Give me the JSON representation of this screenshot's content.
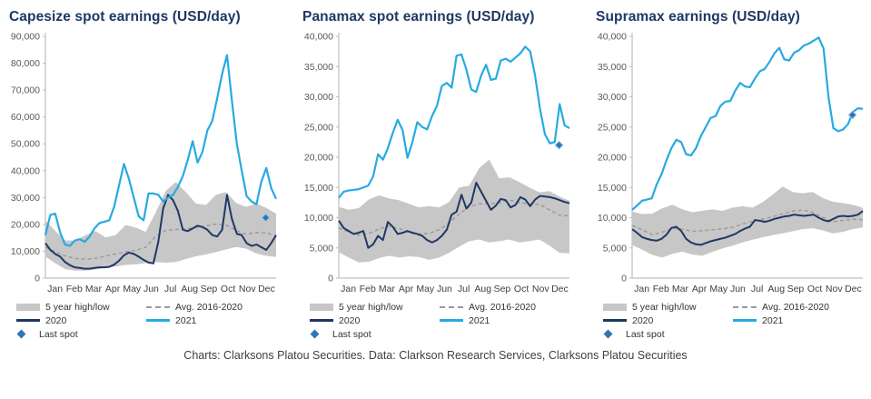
{
  "footer": {
    "caption": "Charts: Clarksons Platou Securities. Data: Clarkson Research Services, Clarksons Platou Securities"
  },
  "colors": {
    "title": "#1F3864",
    "band": "#C7C7C8",
    "avg": "#999999",
    "y2020": "#1F3864",
    "y2021": "#27AAE1",
    "last_spot": "#2E75B6",
    "axis": "#BFBFBF",
    "tick_text": "#595959"
  },
  "chart_data": [
    {
      "type": "line",
      "title": "Capesize spot earnings (USD/day)",
      "x_labels": [
        "Jan",
        "Feb",
        "Mar",
        "Apr",
        "May",
        "Jun",
        "Jul",
        "Aug",
        "Sep",
        "Oct",
        "Nov",
        "Dec"
      ],
      "ylim": [
        0,
        90000
      ],
      "y_tick_step": 10000,
      "grid": false,
      "legend_position": "bottom",
      "band": {
        "label": "5 year high/low",
        "low": [
          8000,
          5500,
          3300,
          2800,
          2800,
          3200,
          3900,
          4300,
          4900,
          5100,
          5600,
          6000,
          5700,
          6000,
          7100,
          8100,
          8800,
          9700,
          10700,
          11600,
          11000,
          9200,
          8300,
          7900
        ],
        "high": [
          21500,
          17500,
          14000,
          14000,
          16000,
          17500,
          15200,
          16000,
          19800,
          18800,
          17200,
          24500,
          32500,
          35800,
          32000,
          27800,
          27200,
          31000,
          32000,
          28000,
          26500,
          27800,
          26200,
          24000
        ]
      },
      "avg": {
        "label": "Avg. 2016-2020",
        "values": [
          11500,
          9800,
          8200,
          7300,
          7000,
          7400,
          8200,
          9000,
          9800,
          10300,
          11500,
          15500,
          17800,
          18100,
          18300,
          18900,
          19400,
          20100,
          19800,
          17800,
          16300,
          17000,
          16800,
          15700
        ]
      },
      "y2020": {
        "label": "2020",
        "values": [
          13000,
          10500,
          9000,
          8000,
          6000,
          4800,
          4000,
          3800,
          3500,
          3500,
          3800,
          4000,
          4000,
          4200,
          5000,
          6500,
          8500,
          9500,
          9000,
          8000,
          6800,
          5800,
          5500,
          13500,
          26000,
          31000,
          29000,
          25000,
          18000,
          17500,
          18500,
          19500,
          19000,
          18000,
          16000,
          15500,
          18000,
          31000,
          22000,
          16500,
          16000,
          13000,
          12000,
          12500,
          11500,
          10500,
          13000,
          16000
        ]
      },
      "y2021": {
        "label": "2021",
        "values": [
          16000,
          23500,
          24000,
          17000,
          12500,
          12000,
          14000,
          14500,
          13500,
          15500,
          18500,
          20500,
          21000,
          21500,
          26500,
          34500,
          42500,
          37000,
          30000,
          23000,
          21500,
          31500,
          31500,
          31000,
          28500,
          30000,
          31000,
          34000,
          38000,
          44000,
          51000,
          43000,
          47000,
          55000,
          58500,
          67000,
          76000,
          83000,
          66000,
          50000,
          40000,
          30500,
          28500,
          27500,
          36000,
          41000,
          33500,
          29500
        ]
      },
      "last_spot": {
        "label": "Last spot",
        "value": 22500
      }
    },
    {
      "type": "line",
      "title": "Panamax spot earnings (USD/day)",
      "x_labels": [
        "Jan",
        "Feb",
        "Mar",
        "Apr",
        "May",
        "Jun",
        "Jul",
        "Aug",
        "Sep",
        "Oct",
        "Nov",
        "Dec"
      ],
      "ylim": [
        0,
        40000
      ],
      "y_tick_step": 5000,
      "grid": false,
      "legend_position": "bottom",
      "band": {
        "label": "5 year high/low",
        "low": [
          4300,
          3400,
          2600,
          2700,
          3300,
          3700,
          3400,
          3600,
          3500,
          3000,
          3400,
          4200,
          5200,
          6100,
          6400,
          5900,
          6100,
          6400,
          5900,
          6100,
          6400,
          5400,
          4200,
          4100
        ],
        "high": [
          11800,
          11300,
          11600,
          13000,
          13700,
          13200,
          12900,
          12300,
          11700,
          11900,
          11700,
          12600,
          15000,
          15300,
          18200,
          19600,
          16500,
          16700,
          15900,
          15000,
          14200,
          14400,
          13500,
          12800
        ]
      },
      "avg": {
        "label": "Avg. 2016-2020",
        "values": [
          8300,
          7600,
          7100,
          7400,
          8100,
          8600,
          8200,
          7700,
          7300,
          7400,
          8000,
          9100,
          10600,
          11800,
          12300,
          12300,
          12500,
          12900,
          12500,
          12300,
          12200,
          11300,
          10400,
          10300
        ]
      },
      "y2020": {
        "label": "2020",
        "values": [
          9500,
          8300,
          7800,
          7300,
          7500,
          7800,
          5000,
          5600,
          7000,
          6300,
          9300,
          8500,
          7300,
          7500,
          7800,
          7500,
          7300,
          7000,
          6300,
          5900,
          6300,
          7000,
          8000,
          10500,
          11000,
          13800,
          11500,
          12500,
          15800,
          14300,
          12800,
          11300,
          12000,
          13100,
          12900,
          11700,
          12100,
          13400,
          13000,
          11900,
          13000,
          13600,
          13500,
          13400,
          13200,
          12900,
          12600,
          12400
        ]
      },
      "y2021": {
        "label": "2021",
        "values": [
          13300,
          14300,
          14500,
          14600,
          14700,
          15000,
          15300,
          16800,
          20500,
          19600,
          21500,
          24000,
          26200,
          24500,
          19900,
          22500,
          25800,
          25000,
          24600,
          26800,
          28500,
          31800,
          32300,
          31500,
          36800,
          37000,
          34500,
          31200,
          30800,
          33500,
          35300,
          32800,
          33000,
          36000,
          36300,
          35800,
          36500,
          37200,
          38300,
          37500,
          33500,
          28000,
          23800,
          22300,
          22500,
          28800,
          25300,
          24800
        ]
      },
      "last_spot": {
        "label": "Last spot",
        "value": 22000
      }
    },
    {
      "type": "line",
      "title": "Supramax earnings (USD/day)",
      "x_labels": [
        "Jan",
        "Feb",
        "Mar",
        "Apr",
        "May",
        "Jun",
        "Jul",
        "Aug",
        "Sep",
        "Oct",
        "Nov",
        "Dec"
      ],
      "ylim": [
        0,
        40000
      ],
      "y_tick_step": 5000,
      "grid": false,
      "legend_position": "bottom",
      "band": {
        "label": "5 year high/low",
        "low": [
          5500,
          4700,
          3850,
          3400,
          4000,
          4400,
          3900,
          3700,
          4350,
          4900,
          5350,
          5900,
          6350,
          6750,
          7100,
          7400,
          7750,
          8100,
          8250,
          7900,
          7400,
          7650,
          8100,
          8400
        ],
        "high": [
          11000,
          10600,
          10650,
          11550,
          12150,
          11400,
          10900,
          11150,
          11400,
          11100,
          11650,
          11900,
          11650,
          12550,
          13800,
          15150,
          14250,
          14050,
          14250,
          13250,
          12650,
          12400,
          12150,
          11650
        ]
      },
      "avg": {
        "label": "Avg. 2016-2020",
        "values": [
          8700,
          8000,
          7200,
          7600,
          8250,
          8100,
          7750,
          7850,
          8000,
          8150,
          8400,
          8950,
          9400,
          9750,
          10150,
          10650,
          11100,
          11250,
          10900,
          10050,
          9300,
          9550,
          9750,
          9650
        ]
      },
      "y2020": {
        "label": "2020",
        "values": [
          8100,
          7500,
          6800,
          6500,
          6300,
          6200,
          6500,
          7200,
          8300,
          8500,
          7800,
          6500,
          5900,
          5600,
          5500,
          5800,
          6100,
          6300,
          6500,
          6700,
          7000,
          7300,
          7800,
          8200,
          8500,
          9600,
          9500,
          9300,
          9500,
          9800,
          10000,
          10200,
          10300,
          10500,
          10400,
          10300,
          10400,
          10500,
          10000,
          9600,
          9400,
          9800,
          10200,
          10300,
          10200,
          10300,
          10500,
          11100
        ]
      },
      "y2021": {
        "label": "2021",
        "values": [
          11300,
          12000,
          12800,
          13000,
          13200,
          15500,
          17200,
          19500,
          21500,
          22900,
          22500,
          20500,
          20300,
          21500,
          23500,
          25000,
          26500,
          26800,
          28500,
          29200,
          29300,
          31000,
          32300,
          31700,
          31600,
          33000,
          34200,
          34600,
          35800,
          37200,
          38100,
          36200,
          36000,
          37300,
          37700,
          38500,
          38800,
          39300,
          39800,
          38000,
          30000,
          24800,
          24300,
          24600,
          25500,
          27500,
          28100,
          28000
        ]
      },
      "last_spot": {
        "label": "Last spot",
        "value": 27000
      }
    }
  ]
}
